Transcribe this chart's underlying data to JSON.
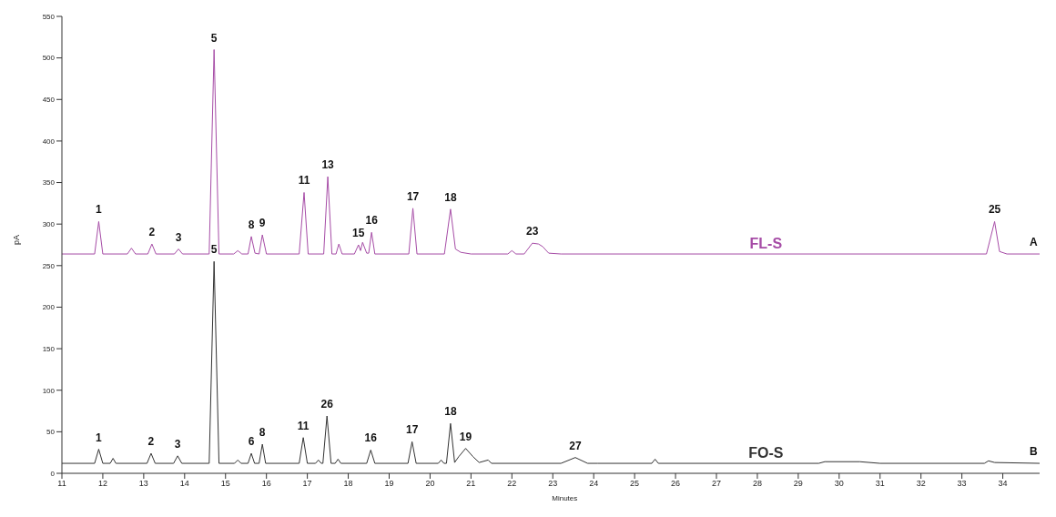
{
  "chart_data": {
    "type": "line",
    "xlabel": "Minutes",
    "ylabel": "pA",
    "xlim": [
      11,
      34.9
    ],
    "xticks": [
      11,
      12,
      13,
      14,
      15,
      16,
      17,
      18,
      19,
      20,
      21,
      22,
      23,
      24,
      25,
      26,
      27,
      28,
      29,
      30,
      31,
      32,
      33,
      34
    ],
    "ylim": [
      0,
      550
    ],
    "yticks": [
      0,
      50,
      100,
      150,
      200,
      250,
      300,
      350,
      400,
      450,
      500,
      550
    ],
    "grid": false,
    "legend": false,
    "marker": "none",
    "line_style": "solid",
    "series": [
      {
        "name": "FL-S",
        "color": "#a64ca6",
        "x": [
          11.0,
          11.8,
          11.9,
          12.0,
          12.6,
          12.7,
          12.8,
          13.1,
          13.2,
          13.3,
          13.75,
          13.85,
          13.95,
          14.6,
          14.72,
          14.84,
          15.2,
          15.3,
          15.4,
          15.55,
          15.63,
          15.72,
          15.82,
          15.9,
          16.0,
          16.8,
          16.92,
          17.02,
          17.4,
          17.5,
          17.6,
          17.7,
          17.77,
          17.85,
          18.15,
          18.25,
          18.3,
          18.35,
          18.45,
          18.5,
          18.57,
          18.65,
          19.48,
          19.58,
          19.68,
          20.35,
          20.5,
          20.62,
          20.75,
          21.0,
          21.9,
          22.0,
          22.1,
          22.3,
          22.5,
          22.65,
          22.75,
          22.9,
          23.2,
          33.6,
          33.8,
          33.92,
          34.1,
          34.9
        ],
        "values": [
          264,
          264,
          303,
          264,
          264,
          271,
          264,
          264,
          276,
          264,
          264,
          270,
          264,
          264,
          510,
          264,
          264,
          268,
          264,
          264,
          285,
          265,
          264,
          287,
          264,
          264,
          338,
          264,
          264,
          357,
          264,
          264,
          276,
          264,
          264,
          275,
          268,
          278,
          265,
          265,
          290,
          264,
          264,
          319,
          264,
          264,
          318,
          270,
          266,
          264,
          264,
          268,
          264,
          264,
          277,
          276,
          273,
          265,
          264,
          264,
          303,
          267,
          264,
          264
        ]
      },
      {
        "name": "FO-S",
        "color": "#333333",
        "x": [
          11.0,
          11.8,
          11.9,
          12.0,
          12.18,
          12.25,
          12.32,
          13.08,
          13.18,
          13.28,
          13.73,
          13.83,
          13.93,
          14.6,
          14.72,
          14.84,
          15.22,
          15.3,
          15.38,
          15.55,
          15.63,
          15.71,
          15.82,
          15.9,
          15.98,
          16.8,
          16.9,
          17.0,
          17.2,
          17.27,
          17.34,
          17.38,
          17.48,
          17.58,
          17.68,
          17.75,
          17.82,
          18.45,
          18.55,
          18.65,
          19.46,
          19.56,
          19.66,
          20.2,
          20.27,
          20.34,
          20.4,
          20.5,
          20.6,
          20.7,
          20.87,
          21.05,
          21.2,
          21.42,
          21.5,
          23.2,
          23.55,
          23.85,
          24.1,
          25.42,
          25.5,
          25.58,
          29.5,
          29.65,
          30.5,
          31,
          33.55,
          33.65,
          33.8,
          34.9
        ],
        "values": [
          12,
          12,
          29,
          12,
          12,
          18,
          12,
          12,
          24,
          12,
          12,
          21,
          12,
          12,
          255,
          12,
          12,
          16,
          12,
          12,
          24,
          12,
          12,
          35,
          12,
          12,
          43,
          12,
          12,
          16,
          12,
          12,
          69,
          12,
          12,
          17,
          12,
          12,
          28,
          12,
          12,
          38,
          12,
          12,
          16,
          12,
          12,
          60,
          13,
          20,
          30,
          20,
          13,
          16,
          12,
          12,
          19,
          12,
          12,
          12,
          17,
          12,
          12,
          14,
          14,
          12,
          12,
          15,
          13,
          12
        ]
      }
    ],
    "annotations": [
      {
        "text": "1",
        "x": 11.9,
        "y": 303
      },
      {
        "text": "2",
        "x": 13.2,
        "y": 276
      },
      {
        "text": "3",
        "x": 13.85,
        "y": 270
      },
      {
        "text": "5",
        "x": 14.72,
        "y": 510
      },
      {
        "text": "8",
        "x": 15.63,
        "y": 285
      },
      {
        "text": "9",
        "x": 15.9,
        "y": 287
      },
      {
        "text": "11",
        "x": 16.92,
        "y": 338
      },
      {
        "text": "13",
        "x": 17.5,
        "y": 357
      },
      {
        "text": "15",
        "x": 18.25,
        "y": 275
      },
      {
        "text": "16",
        "x": 18.57,
        "y": 290
      },
      {
        "text": "17",
        "x": 19.58,
        "y": 319
      },
      {
        "text": "18",
        "x": 20.5,
        "y": 318
      },
      {
        "text": "23",
        "x": 22.5,
        "y": 277
      },
      {
        "text": "25",
        "x": 33.8,
        "y": 303
      },
      {
        "text": "A",
        "x": 34.75,
        "y": 264
      },
      {
        "text": "1",
        "x": 11.9,
        "y": 29
      },
      {
        "text": "2",
        "x": 13.18,
        "y": 24
      },
      {
        "text": "3",
        "x": 13.83,
        "y": 21
      },
      {
        "text": "5",
        "x": 14.72,
        "y": 255
      },
      {
        "text": "6",
        "x": 15.63,
        "y": 24
      },
      {
        "text": "8",
        "x": 15.9,
        "y": 35
      },
      {
        "text": "11",
        "x": 16.9,
        "y": 43
      },
      {
        "text": "26",
        "x": 17.48,
        "y": 69
      },
      {
        "text": "16",
        "x": 18.55,
        "y": 28
      },
      {
        "text": "17",
        "x": 19.56,
        "y": 38
      },
      {
        "text": "18",
        "x": 20.5,
        "y": 60
      },
      {
        "text": "19",
        "x": 20.87,
        "y": 30
      },
      {
        "text": "27",
        "x": 23.55,
        "y": 19
      },
      {
        "text": "B",
        "x": 34.75,
        "y": 12
      }
    ]
  }
}
